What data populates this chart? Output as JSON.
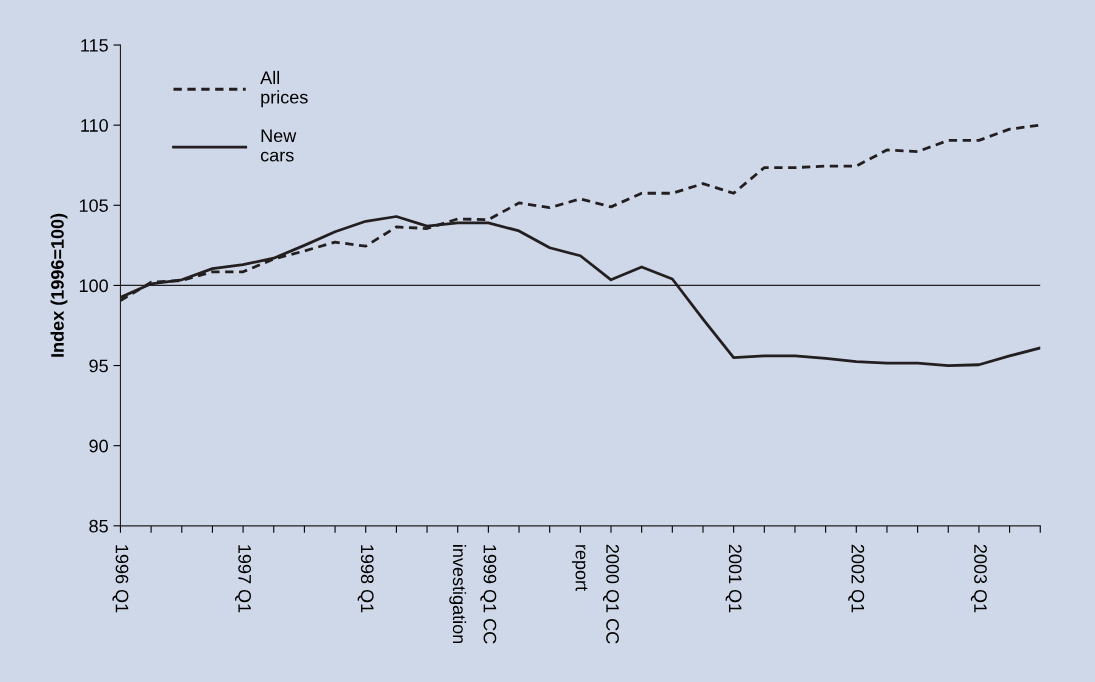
{
  "chart_data": {
    "type": "line",
    "ylabel": "Index (1996=100)",
    "categories": [
      "1996 Q1",
      null,
      null,
      null,
      "1997 Q1",
      null,
      null,
      null,
      "1998 Q1",
      null,
      null,
      "investigation",
      "1999 Q1 CC",
      null,
      null,
      "report",
      "2000 Q1 CC",
      null,
      null,
      null,
      "2001 Q1",
      null,
      null,
      null,
      "2002 Q1",
      null,
      null,
      null,
      "2003 Q1",
      null,
      null
    ],
    "series": [
      {
        "name": "All\nprices",
        "color": "#231f20",
        "line_style": "dashed",
        "values": [
          99.05,
          100.2,
          100.3,
          100.85,
          100.85,
          101.65,
          102.15,
          102.7,
          102.45,
          103.65,
          103.55,
          104.15,
          104.1,
          105.15,
          104.85,
          105.4,
          104.9,
          105.75,
          105.75,
          106.35,
          105.75,
          107.35,
          107.35,
          107.45,
          107.45,
          108.45,
          108.35,
          109.05,
          109.05,
          109.75,
          110.0
        ]
      },
      {
        "name": "New\ncars",
        "color": "#231f20",
        "line_style": "solid",
        "values": [
          99.25,
          100.1,
          100.35,
          101.05,
          101.3,
          101.7,
          102.5,
          103.35,
          104.0,
          104.3,
          103.7,
          103.9,
          103.9,
          103.4,
          102.35,
          101.85,
          100.35,
          101.15,
          100.4,
          97.9,
          95.5,
          95.6,
          95.6,
          95.45,
          95.25,
          95.15,
          95.15,
          95.0,
          95.05,
          95.6,
          96.1
        ]
      }
    ],
    "ylim": [
      85,
      115
    ],
    "yticks": [
      85,
      90,
      95,
      100,
      105,
      110,
      115
    ],
    "ref_lines": [
      {
        "axis": "y",
        "value": 100,
        "color": "#231f20"
      }
    ],
    "grid": false,
    "legend": "top left"
  }
}
